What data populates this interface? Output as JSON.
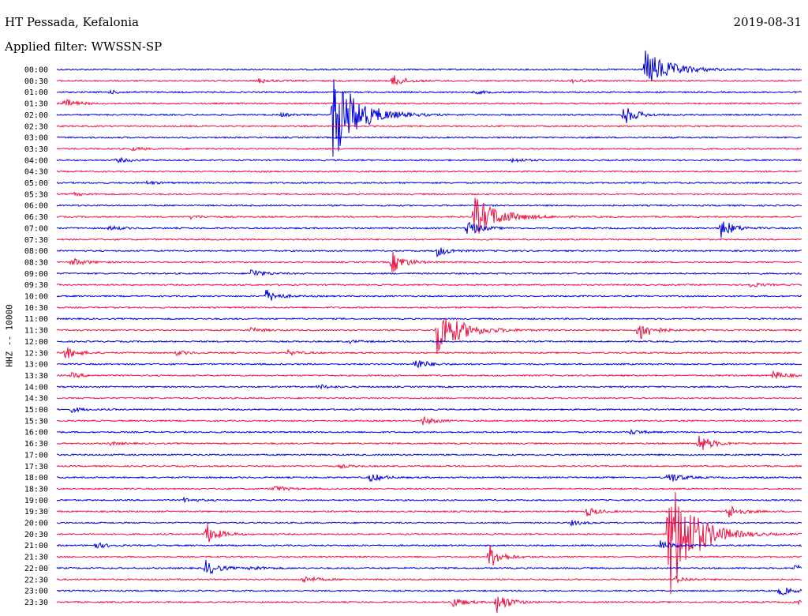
{
  "header": {
    "station": "HT Pessada, Kefalonia",
    "date": "2019-08-31",
    "filter": "Applied filter: WWSSN-SP"
  },
  "colors": {
    "trace_a": "#0000dd",
    "trace_b": "#ee1144"
  },
  "chart_data": {
    "type": "line",
    "title": "HT Pessada, Kefalonia",
    "subtitle": "Applied filter: WWSSN-SP",
    "ylabel": "HHZ -- 10000",
    "xlabel": "",
    "grid": false,
    "legend": "none",
    "rows": [
      {
        "label": "00:00",
        "color": "trace_a",
        "events": [
          {
            "t": 0.79,
            "amp": 24
          }
        ]
      },
      {
        "label": "00:30",
        "color": "trace_b",
        "events": [
          {
            "t": 0.27,
            "amp": 3
          },
          {
            "t": 0.45,
            "amp": 8
          },
          {
            "t": 0.69,
            "amp": 2
          }
        ]
      },
      {
        "label": "01:00",
        "color": "trace_a",
        "events": [
          {
            "t": 0.07,
            "amp": 2
          },
          {
            "t": 0.56,
            "amp": 2
          }
        ]
      },
      {
        "label": "01:30",
        "color": "trace_b",
        "events": [
          {
            "t": 0.01,
            "amp": 6
          }
        ]
      },
      {
        "label": "02:00",
        "color": "trace_a",
        "events": [
          {
            "t": 0.37,
            "amp": 60
          },
          {
            "t": 0.76,
            "amp": 14
          },
          {
            "t": 0.3,
            "amp": 2
          }
        ]
      },
      {
        "label": "02:30",
        "color": "trace_b",
        "events": []
      },
      {
        "label": "03:00",
        "color": "trace_a",
        "events": []
      },
      {
        "label": "03:30",
        "color": "trace_b",
        "events": [
          {
            "t": 0.1,
            "amp": 2
          }
        ]
      },
      {
        "label": "04:00",
        "color": "trace_a",
        "events": [
          {
            "t": 0.08,
            "amp": 3
          },
          {
            "t": 0.61,
            "amp": 3
          }
        ]
      },
      {
        "label": "04:30",
        "color": "trace_b",
        "events": []
      },
      {
        "label": "05:00",
        "color": "trace_a",
        "events": [
          {
            "t": 0.12,
            "amp": 2
          }
        ]
      },
      {
        "label": "05:30",
        "color": "trace_b",
        "events": [
          {
            "t": 0.02,
            "amp": 2
          }
        ]
      },
      {
        "label": "06:00",
        "color": "trace_a",
        "events": []
      },
      {
        "label": "06:30",
        "color": "trace_b",
        "events": [
          {
            "t": 0.18,
            "amp": 2
          },
          {
            "t": 0.56,
            "amp": 26
          }
        ]
      },
      {
        "label": "07:00",
        "color": "trace_a",
        "events": [
          {
            "t": 0.55,
            "amp": 12
          },
          {
            "t": 0.89,
            "amp": 14
          },
          {
            "t": 0.07,
            "amp": 3
          }
        ]
      },
      {
        "label": "07:30",
        "color": "trace_b",
        "events": []
      },
      {
        "label": "08:00",
        "color": "trace_a",
        "events": [
          {
            "t": 0.51,
            "amp": 7
          }
        ]
      },
      {
        "label": "08:30",
        "color": "trace_b",
        "events": [
          {
            "t": 0.02,
            "amp": 5
          },
          {
            "t": 0.45,
            "amp": 14
          }
        ]
      },
      {
        "label": "09:00",
        "color": "trace_a",
        "events": [
          {
            "t": 0.26,
            "amp": 6
          }
        ]
      },
      {
        "label": "09:30",
        "color": "trace_b",
        "events": [
          {
            "t": 0.93,
            "amp": 3
          }
        ]
      },
      {
        "label": "10:00",
        "color": "trace_a",
        "events": [
          {
            "t": 0.28,
            "amp": 9
          }
        ]
      },
      {
        "label": "10:30",
        "color": "trace_b",
        "events": []
      },
      {
        "label": "11:00",
        "color": "trace_a",
        "events": []
      },
      {
        "label": "11:30",
        "color": "trace_b",
        "events": [
          {
            "t": 0.26,
            "amp": 3
          },
          {
            "t": 0.51,
            "amp": 30
          },
          {
            "t": 0.78,
            "amp": 16
          }
        ]
      },
      {
        "label": "12:00",
        "color": "trace_a",
        "events": [
          {
            "t": 0.39,
            "amp": 2
          }
        ]
      },
      {
        "label": "12:30",
        "color": "trace_b",
        "events": [
          {
            "t": 0.01,
            "amp": 9
          },
          {
            "t": 0.16,
            "amp": 3
          },
          {
            "t": 0.31,
            "amp": 3
          }
        ]
      },
      {
        "label": "13:00",
        "color": "trace_a",
        "events": [
          {
            "t": 0.48,
            "amp": 8
          }
        ]
      },
      {
        "label": "13:30",
        "color": "trace_b",
        "events": [
          {
            "t": 0.02,
            "amp": 3
          },
          {
            "t": 0.96,
            "amp": 6
          }
        ]
      },
      {
        "label": "14:00",
        "color": "trace_a",
        "events": [
          {
            "t": 0.35,
            "amp": 3
          }
        ]
      },
      {
        "label": "14:30",
        "color": "trace_b",
        "events": []
      },
      {
        "label": "15:00",
        "color": "trace_a",
        "events": [
          {
            "t": 0.02,
            "amp": 3
          }
        ]
      },
      {
        "label": "15:30",
        "color": "trace_b",
        "events": [
          {
            "t": 0.49,
            "amp": 6
          }
        ]
      },
      {
        "label": "16:00",
        "color": "trace_a",
        "events": [
          {
            "t": 0.77,
            "amp": 3
          }
        ]
      },
      {
        "label": "16:30",
        "color": "trace_b",
        "events": [
          {
            "t": 0.86,
            "amp": 14
          },
          {
            "t": 0.07,
            "amp": 2
          }
        ]
      },
      {
        "label": "17:00",
        "color": "trace_a",
        "events": []
      },
      {
        "label": "17:30",
        "color": "trace_b",
        "events": [
          {
            "t": 0.38,
            "amp": 2
          }
        ]
      },
      {
        "label": "18:00",
        "color": "trace_a",
        "events": [
          {
            "t": 0.42,
            "amp": 6
          },
          {
            "t": 0.82,
            "amp": 8
          }
        ]
      },
      {
        "label": "18:30",
        "color": "trace_b",
        "events": [
          {
            "t": 0.29,
            "amp": 4
          }
        ]
      },
      {
        "label": "19:00",
        "color": "trace_a",
        "events": [
          {
            "t": 0.17,
            "amp": 3
          }
        ]
      },
      {
        "label": "19:30",
        "color": "trace_b",
        "events": [
          {
            "t": 0.71,
            "amp": 6
          },
          {
            "t": 0.9,
            "amp": 10
          }
        ]
      },
      {
        "label": "20:00",
        "color": "trace_a",
        "events": [
          {
            "t": 0.69,
            "amp": 3
          }
        ]
      },
      {
        "label": "20:30",
        "color": "trace_b",
        "events": [
          {
            "t": 0.2,
            "amp": 14
          },
          {
            "t": 0.82,
            "amp": 90
          }
        ]
      },
      {
        "label": "21:00",
        "color": "trace_a",
        "events": [
          {
            "t": 0.05,
            "amp": 4
          },
          {
            "t": 0.81,
            "amp": 6
          }
        ]
      },
      {
        "label": "21:30",
        "color": "trace_b",
        "events": [
          {
            "t": 0.58,
            "amp": 16
          }
        ]
      },
      {
        "label": "22:00",
        "color": "trace_a",
        "events": [
          {
            "t": 0.2,
            "amp": 10
          },
          {
            "t": 0.26,
            "amp": 3
          },
          {
            "t": 0.99,
            "amp": 4
          }
        ]
      },
      {
        "label": "22:30",
        "color": "trace_b",
        "events": [
          {
            "t": 0.33,
            "amp": 5
          },
          {
            "t": 0.83,
            "amp": 4
          }
        ]
      },
      {
        "label": "23:00",
        "color": "trace_a",
        "events": [
          {
            "t": 0.97,
            "amp": 6
          }
        ]
      },
      {
        "label": "23:30",
        "color": "trace_b",
        "events": [
          {
            "t": 0.53,
            "amp": 7
          },
          {
            "t": 0.59,
            "amp": 14
          },
          {
            "t": 0.99,
            "amp": 3
          }
        ]
      }
    ]
  }
}
